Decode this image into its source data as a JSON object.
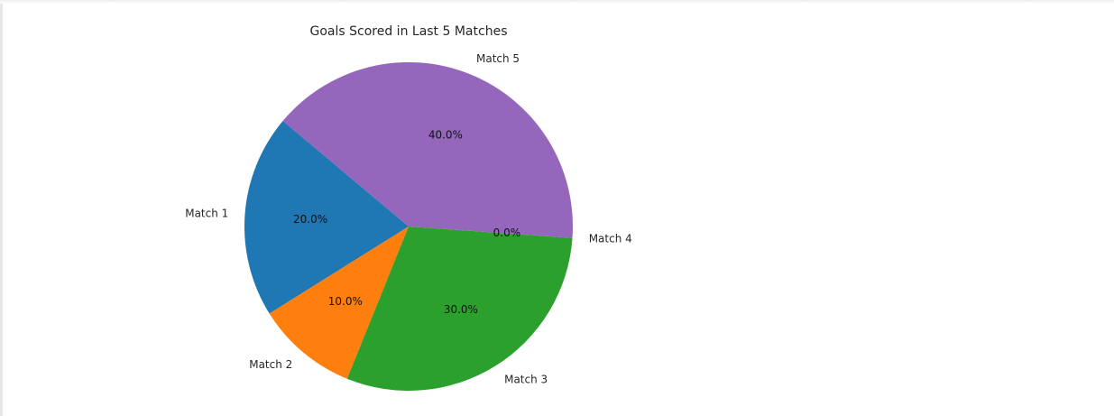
{
  "chart_data": {
    "type": "pie",
    "title": "Goals Scored in Last 5 Matches",
    "categories": [
      "Match 1",
      "Match 2",
      "Match 3",
      "Match 4",
      "Match 5"
    ],
    "values": [
      2,
      1,
      3,
      0,
      4
    ],
    "percent_labels": [
      "20.0%",
      "10.0%",
      "30.0%",
      "0.0%",
      "40.0%"
    ],
    "colors": [
      "#1f77b4",
      "#ff7f0e",
      "#2ca02c",
      "#d62728",
      "#9467bd"
    ],
    "start_angle_deg": 140,
    "direction": "counterclockwise"
  }
}
